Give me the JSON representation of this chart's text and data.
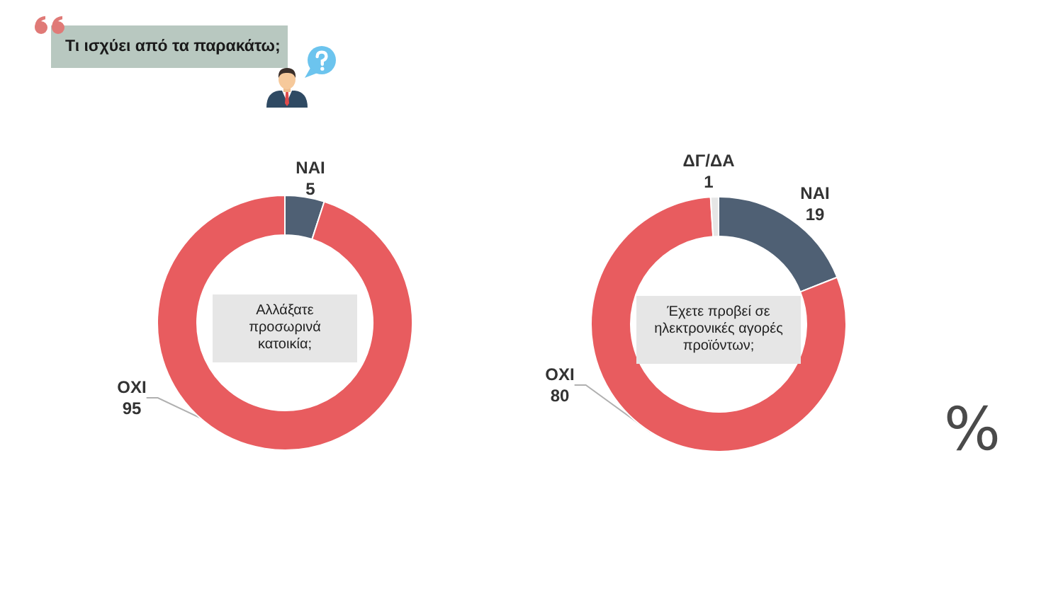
{
  "chart_data": [
    {
      "type": "other",
      "title": "Τι ισχύει από τα παρακάτω;"
    },
    {
      "type": "donut",
      "title": "Αλλάξατε προσωρινά κατοικία;",
      "categories": [
        "ΝΑΙ",
        "ΟΧΙ"
      ],
      "values": [
        5,
        95
      ],
      "colors": [
        "#4f6074",
        "#e85c5f"
      ],
      "data_labels": true
    },
    {
      "type": "donut",
      "title": "Έχετε προβεί σε ηλεκτρονικές αγορές προϊόντων;",
      "categories": [
        "ΝΑΙ",
        "ΟΧΙ",
        "ΔΓ/ΔΑ"
      ],
      "values": [
        19,
        80,
        1
      ],
      "colors": [
        "#4f6074",
        "#e85c5f",
        "#e6e6e6"
      ],
      "data_labels": true,
      "annotations": [
        "%"
      ]
    }
  ]
}
